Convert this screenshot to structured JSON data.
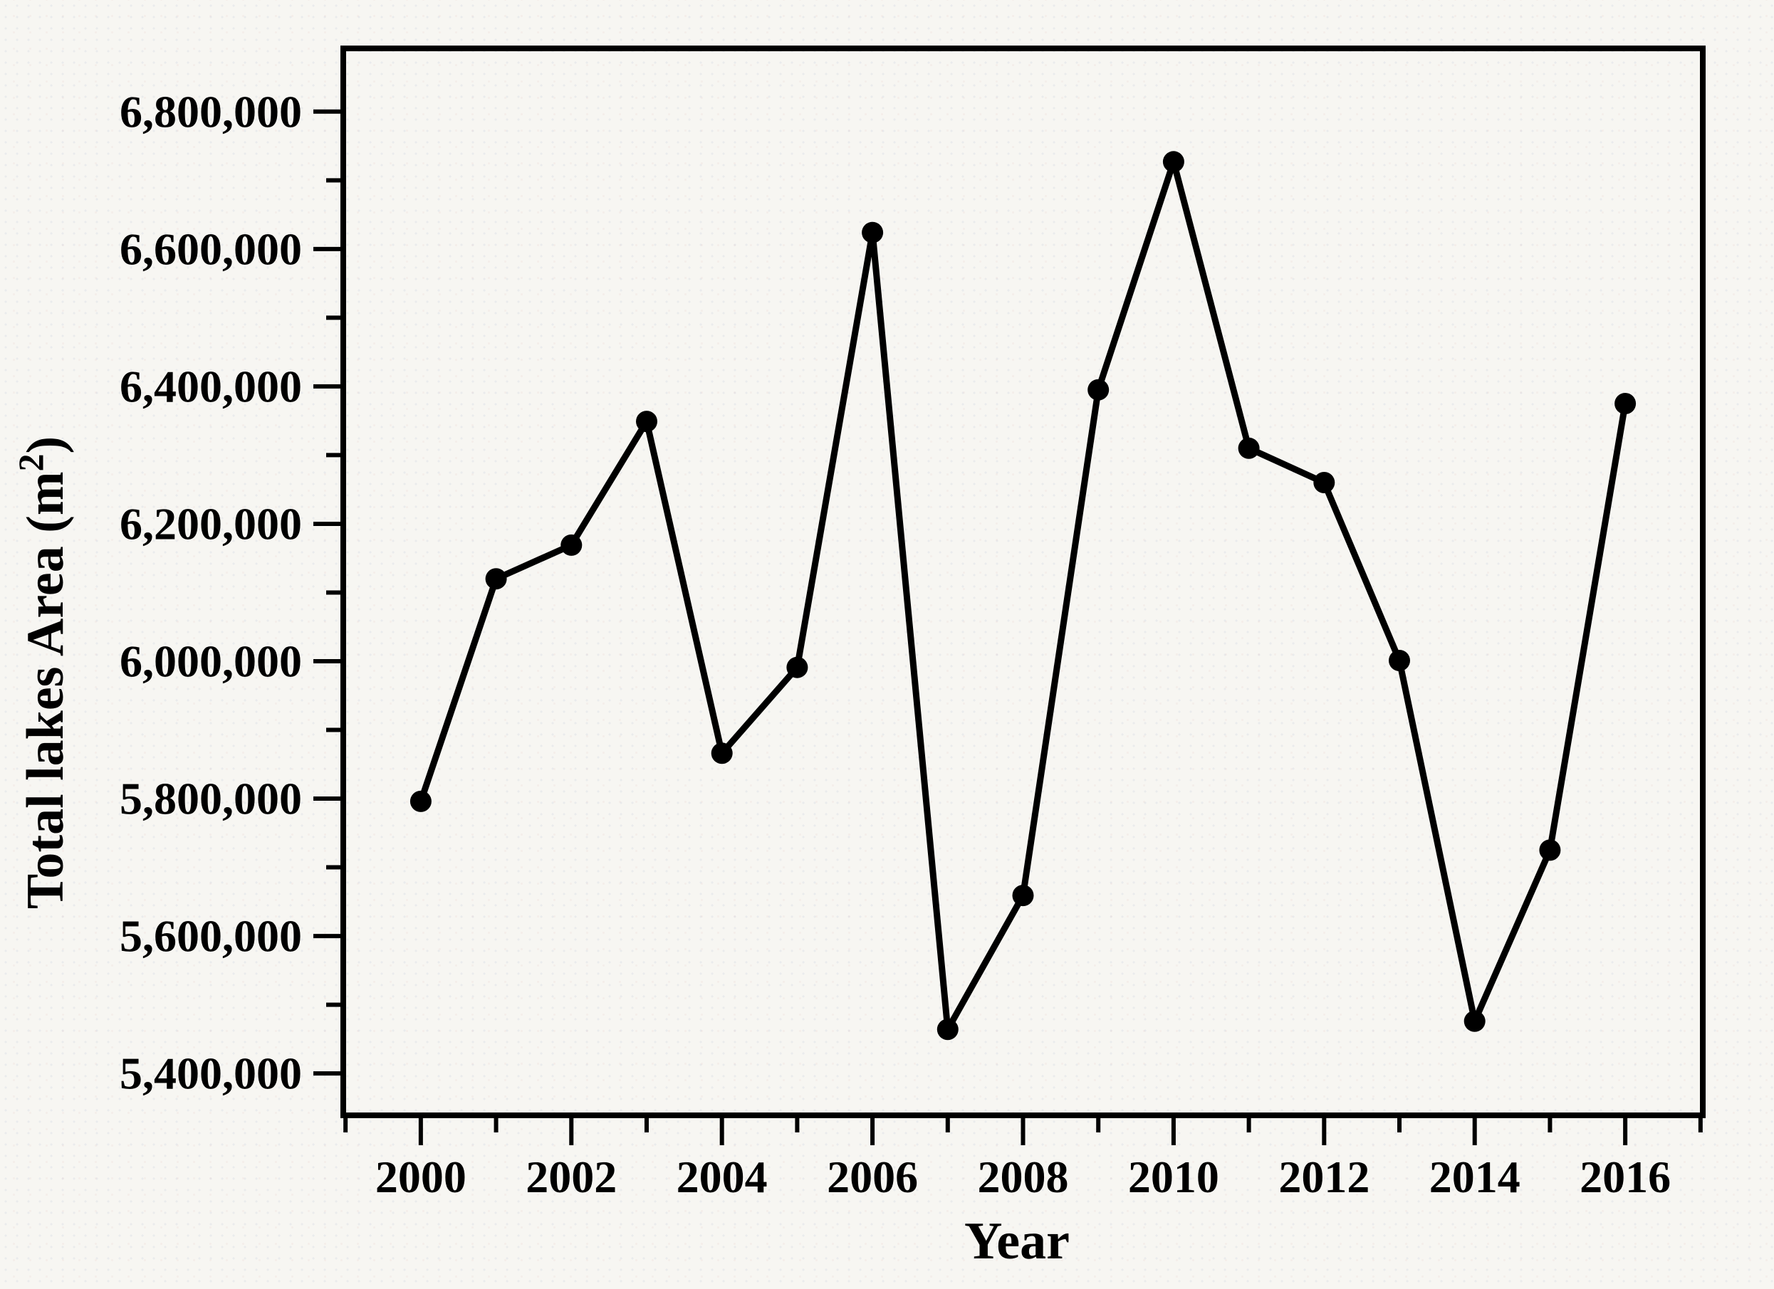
{
  "chart_data": {
    "type": "line",
    "title": "",
    "xlabel": "Year",
    "ylabel": {
      "prefix": "Total lakes Area (m",
      "sup": "2",
      "suffix": ")"
    },
    "legend_position": "none",
    "grid": false,
    "xlim": [
      1998.97,
      2017.03
    ],
    "ylim": [
      5339000,
      6892000
    ],
    "x_ticks_major": [
      2000,
      2002,
      2004,
      2006,
      2008,
      2010,
      2012,
      2014,
      2016
    ],
    "x_tick_labels": [
      "2000",
      "2002",
      "2004",
      "2006",
      "2008",
      "2010",
      "2012",
      "2014",
      "2016"
    ],
    "x_ticks_minor": [
      1999,
      2001,
      2003,
      2005,
      2007,
      2009,
      2011,
      2013,
      2015,
      2017
    ],
    "y_ticks_major": [
      {
        "value": 6800000,
        "label": "6,800,000"
      },
      {
        "value": 6600000,
        "label": "6,600,000"
      },
      {
        "value": 6400000,
        "label": "6,400,000"
      },
      {
        "value": 6200000,
        "label": "6,200,000"
      },
      {
        "value": 6000000,
        "label": "6,000,000"
      },
      {
        "value": 5800000,
        "label": "5,800,000"
      },
      {
        "value": 5600000,
        "label": "5,600,000"
      },
      {
        "value": 5400000,
        "label": "5,400,000"
      }
    ],
    "y_ticks_minor": [
      6700000,
      6500000,
      6300000,
      6100000,
      5900000,
      5700000,
      5500000
    ],
    "series": [
      {
        "name": "Total lakes area",
        "x": [
          2000,
          2001,
          2002,
          2003,
          2004,
          2005,
          2006,
          2007,
          2008,
          2009,
          2010,
          2011,
          2012,
          2013,
          2014,
          2015,
          2016
        ],
        "values": [
          5796000,
          6120000,
          6169000,
          6349000,
          5866000,
          5991000,
          6624000,
          5464000,
          5659000,
          6395000,
          6727000,
          6310000,
          6260000,
          6001000,
          5476000,
          5725000,
          6375000
        ]
      }
    ],
    "colors": {
      "line": "#000000",
      "marker": "#000000",
      "frame": "#000000",
      "text": "#000000",
      "background": "#f7f6f2"
    }
  }
}
